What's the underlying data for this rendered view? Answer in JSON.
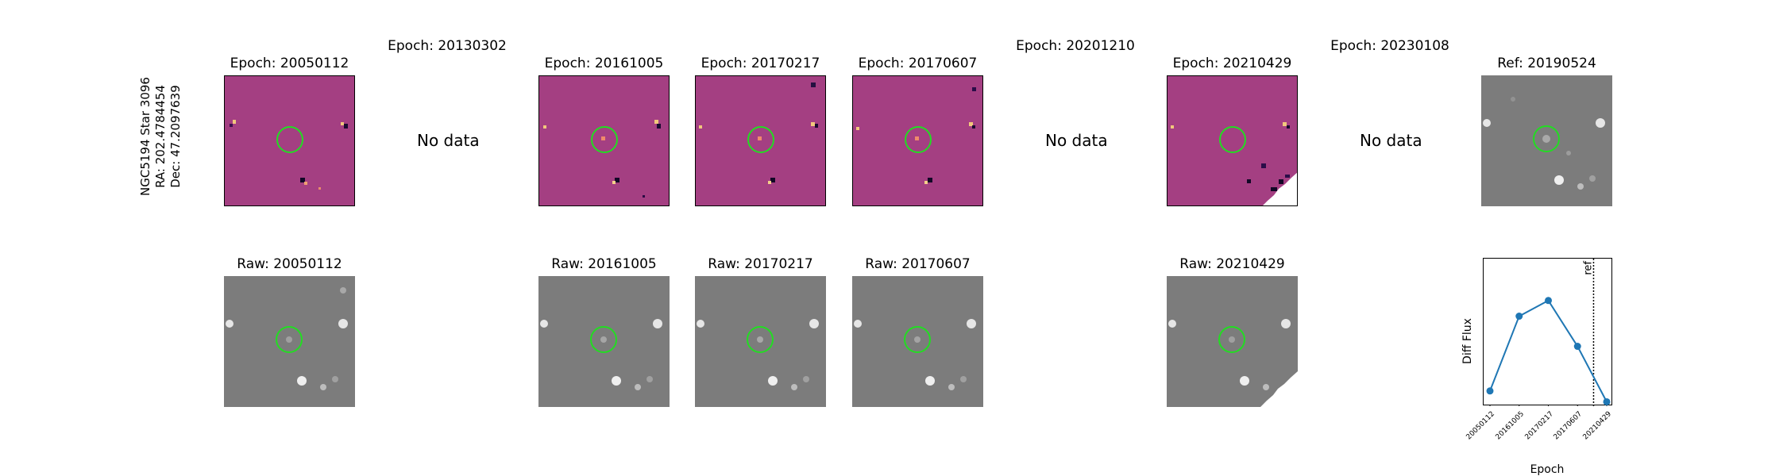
{
  "star_info": {
    "name": "NGC5194 Star 3096",
    "ra": "RA: 202.4784454",
    "dec": "Dec: 47.2097639"
  },
  "diff_row": [
    {
      "title": "Epoch: 20050112",
      "has_data": true
    },
    {
      "title": "Epoch: 20130302",
      "has_data": false,
      "nodata": "No data"
    },
    {
      "title": "Epoch: 20161005",
      "has_data": true
    },
    {
      "title": "Epoch: 20170217",
      "has_data": true
    },
    {
      "title": "Epoch: 20170607",
      "has_data": true
    },
    {
      "title": "Epoch: 20201210",
      "has_data": false,
      "nodata": "No data"
    },
    {
      "title": "Epoch: 20210429",
      "has_data": true
    },
    {
      "title": "Epoch: 20230108",
      "has_data": false,
      "nodata": "No data"
    },
    {
      "title": "Ref: 20190524",
      "has_data": true
    }
  ],
  "raw_row": [
    {
      "title": "Raw: 20050112"
    },
    {
      "title": "Raw: 20161005"
    },
    {
      "title": "Raw: 20170217"
    },
    {
      "title": "Raw: 20170607"
    },
    {
      "title": "Raw: 20210429"
    }
  ],
  "colors": {
    "circle": "#22dd22",
    "diff_bg": "#a43f82",
    "raw_bg": "#7c7c7c",
    "series": "#1f77b4"
  },
  "chart_data": {
    "type": "line",
    "xlabel": "Epoch",
    "ylabel": "Diff Flux",
    "x": [
      "20050112",
      "20161005",
      "20170217",
      "20170607",
      "20210429"
    ],
    "series": [
      {
        "values": [
          0.1,
          0.72,
          0.85,
          0.47,
          0.01
        ]
      }
    ],
    "ref_line": {
      "label": "ref"
    }
  }
}
